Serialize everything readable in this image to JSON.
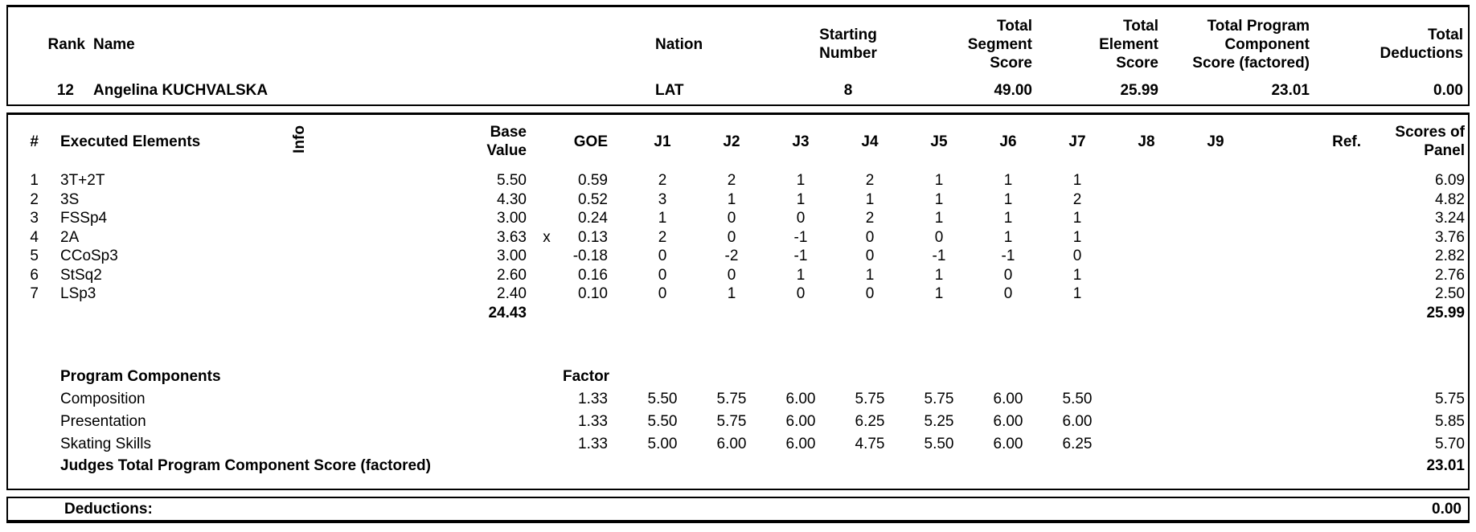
{
  "summary": {
    "columns": {
      "rank": "Rank",
      "name": "Name",
      "nation": "Nation",
      "starting_number": "Starting\nNumber",
      "total_segment_score": "Total\nSegment\nScore",
      "total_element_score": "Total\nElement\nScore",
      "total_program_component_score": "Total Program\nComponent\nScore (factored)",
      "total_deductions": "Total\nDeductions"
    },
    "skater": {
      "rank": "12",
      "name": "Angelina KUCHVALSKA",
      "nation": "LAT",
      "starting_number": "8",
      "total_segment_score": "49.00",
      "total_element_score": "25.99",
      "total_program_component_score": "23.01",
      "total_deductions": "0.00"
    }
  },
  "elements_table": {
    "headers": {
      "num": "#",
      "executed_elements": "Executed Elements",
      "info": "Info",
      "base_value": "Base\nValue",
      "goe": "GOE",
      "judges": [
        "J1",
        "J2",
        "J3",
        "J4",
        "J5",
        "J6",
        "J7",
        "J8",
        "J9"
      ],
      "ref": "Ref.",
      "scores_of_panel": "Scores of\nPanel"
    },
    "rows": [
      {
        "num": "1",
        "name": "3T+2T",
        "info": "",
        "base_value": "5.50",
        "x_mark": "",
        "goe": "0.59",
        "judges": [
          "2",
          "2",
          "1",
          "2",
          "1",
          "1",
          "1",
          "",
          ""
        ],
        "ref": "",
        "panel": "6.09"
      },
      {
        "num": "2",
        "name": "3S",
        "info": "",
        "base_value": "4.30",
        "x_mark": "",
        "goe": "0.52",
        "judges": [
          "3",
          "1",
          "1",
          "1",
          "1",
          "1",
          "2",
          "",
          ""
        ],
        "ref": "",
        "panel": "4.82"
      },
      {
        "num": "3",
        "name": "FSSp4",
        "info": "",
        "base_value": "3.00",
        "x_mark": "",
        "goe": "0.24",
        "judges": [
          "1",
          "0",
          "0",
          "2",
          "1",
          "1",
          "1",
          "",
          ""
        ],
        "ref": "",
        "panel": "3.24"
      },
      {
        "num": "4",
        "name": "2A",
        "info": "",
        "base_value": "3.63",
        "x_mark": "x",
        "goe": "0.13",
        "judges": [
          "2",
          "0",
          "-1",
          "0",
          "0",
          "1",
          "1",
          "",
          ""
        ],
        "ref": "",
        "panel": "3.76"
      },
      {
        "num": "5",
        "name": "CCoSp3",
        "info": "",
        "base_value": "3.00",
        "x_mark": "",
        "goe": "-0.18",
        "judges": [
          "0",
          "-2",
          "-1",
          "0",
          "-1",
          "-1",
          "0",
          "",
          ""
        ],
        "ref": "",
        "panel": "2.82"
      },
      {
        "num": "6",
        "name": "StSq2",
        "info": "",
        "base_value": "2.60",
        "x_mark": "",
        "goe": "0.16",
        "judges": [
          "0",
          "0",
          "1",
          "1",
          "1",
          "0",
          "1",
          "",
          ""
        ],
        "ref": "",
        "panel": "2.76"
      },
      {
        "num": "7",
        "name": "LSp3",
        "info": "",
        "base_value": "2.40",
        "x_mark": "",
        "goe": "0.10",
        "judges": [
          "0",
          "1",
          "0",
          "0",
          "1",
          "0",
          "1",
          "",
          ""
        ],
        "ref": "",
        "panel": "2.50"
      }
    ],
    "totals": {
      "base_value": "24.43",
      "panel": "25.99"
    }
  },
  "components_table": {
    "title": "Program Components",
    "factor_label": "Factor",
    "rows": [
      {
        "name": "Composition",
        "factor": "1.33",
        "judges": [
          "5.50",
          "5.75",
          "6.00",
          "5.75",
          "5.75",
          "6.00",
          "5.50",
          "",
          ""
        ],
        "panel": "5.75"
      },
      {
        "name": "Presentation",
        "factor": "1.33",
        "judges": [
          "5.50",
          "5.75",
          "6.00",
          "6.25",
          "5.25",
          "6.00",
          "6.00",
          "",
          ""
        ],
        "panel": "5.85"
      },
      {
        "name": "Skating Skills",
        "factor": "1.33",
        "judges": [
          "5.00",
          "6.00",
          "6.00",
          "4.75",
          "5.50",
          "6.00",
          "6.25",
          "",
          ""
        ],
        "panel": "5.70"
      }
    ],
    "total_label": "Judges Total Program Component Score (factored)",
    "total_value": "23.01"
  },
  "deductions": {
    "label": "Deductions:",
    "value": "0.00"
  }
}
